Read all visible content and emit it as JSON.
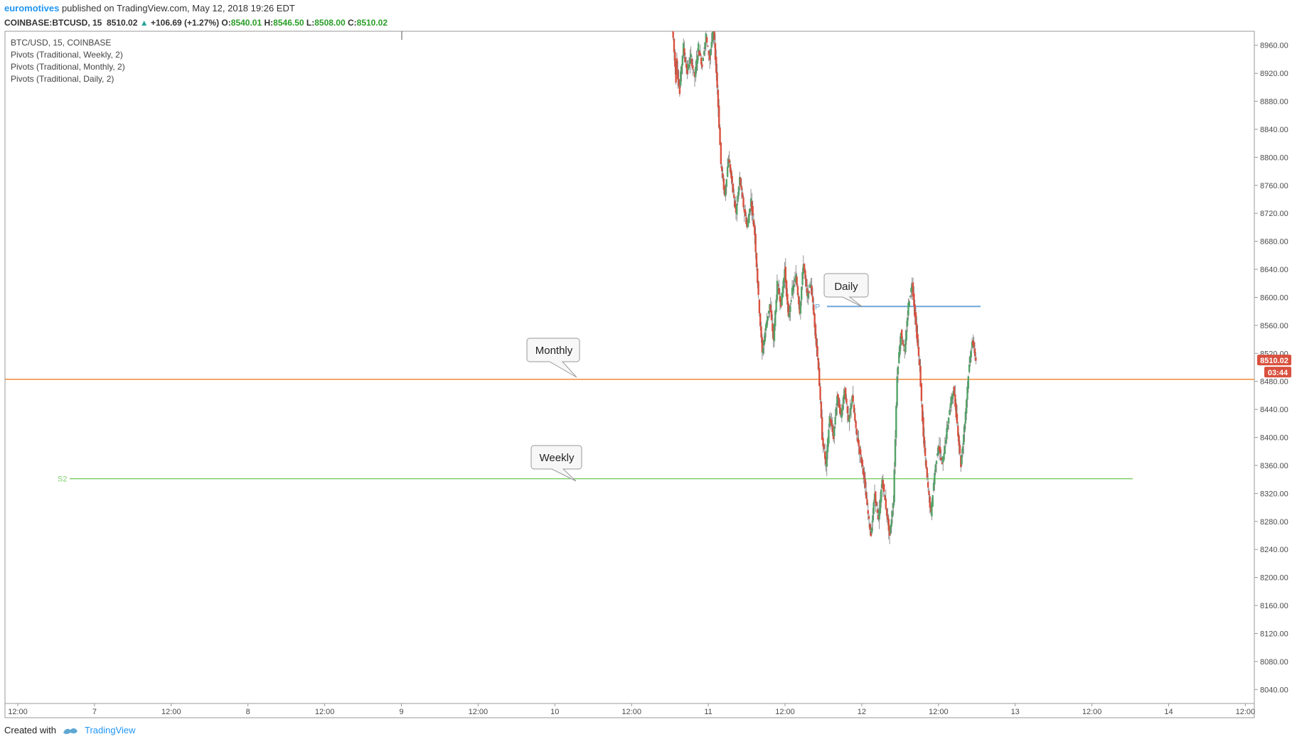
{
  "header": {
    "author": "euromotives",
    "published": "published on TradingView.com, May 12, 2018 19:26 EDT",
    "symbol": "COINBASE:BTCUSD, 15",
    "last": "8510.02",
    "change": "+106.69 (+1.27%)",
    "o_label": "O:",
    "o_val": "8540.01",
    "h_label": "H:",
    "h_val": "8546.50",
    "l_label": "L:",
    "l_val": "8508.00",
    "c_label": "C:",
    "c_val": "8510.02"
  },
  "legend": [
    "BTC/USD, 15, COINBASE",
    "Pivots (Traditional, Weekly, 2)",
    "Pivots (Traditional, Monthly, 2)",
    "Pivots (Traditional, Daily, 2)"
  ],
  "callouts": {
    "daily": "Daily",
    "monthly": "Monthly",
    "weekly": "Weekly"
  },
  "pivot_labels": {
    "daily": "P",
    "weekly": "S2"
  },
  "price_tag": {
    "price": "8510.02",
    "countdown": "03:44"
  },
  "colors": {
    "up": "#53a468",
    "down": "#d9513f",
    "monthly": "#f08a3a",
    "weekly": "#7fcf6e",
    "daily": "#6ea6dc",
    "tag": "#d9513f"
  },
  "footer": {
    "created_with": "Created with",
    "brand": "TradingView"
  },
  "chart_data": {
    "type": "candlestick",
    "ylim": [
      8020,
      8980
    ],
    "y_ticks": [
      8960,
      8920,
      8880,
      8840,
      8800,
      8760,
      8720,
      8680,
      8640,
      8600,
      8560,
      8520,
      8480,
      8440,
      8400,
      8360,
      8320,
      8280,
      8240,
      8200,
      8160,
      8120,
      8080,
      8040
    ],
    "x_ticks": [
      "12:00",
      "7",
      "12:00",
      "8",
      "12:00",
      "9",
      "12:00",
      "10",
      "12:00",
      "11",
      "12:00",
      "12",
      "12:00",
      "13",
      "12:00",
      "14",
      "12:00"
    ],
    "levels": {
      "monthly": 8483,
      "weekly": 8341,
      "daily_p": 8587
    },
    "path": [
      [
        8990,
        8910
      ],
      [
        8940,
        8890
      ],
      [
        8905,
        8960
      ],
      [
        8955,
        8920
      ],
      [
        8925,
        8945
      ],
      [
        8940,
        8915
      ],
      [
        8915,
        8960
      ],
      [
        8955,
        8930
      ],
      [
        8935,
        8975
      ],
      [
        8970,
        8940
      ],
      [
        8945,
        8985
      ],
      [
        8985,
        8900
      ],
      [
        8900,
        8790
      ],
      [
        8790,
        8745
      ],
      [
        8745,
        8800
      ],
      [
        8800,
        8760
      ],
      [
        8760,
        8720
      ],
      [
        8720,
        8770
      ],
      [
        8770,
        8730
      ],
      [
        8730,
        8700
      ],
      [
        8700,
        8740
      ],
      [
        8740,
        8690
      ],
      [
        8690,
        8600
      ],
      [
        8600,
        8520
      ],
      [
        8520,
        8560
      ],
      [
        8560,
        8590
      ],
      [
        8590,
        8540
      ],
      [
        8540,
        8620
      ],
      [
        8620,
        8590
      ],
      [
        8590,
        8640
      ],
      [
        8640,
        8570
      ],
      [
        8570,
        8610
      ],
      [
        8610,
        8630
      ],
      [
        8630,
        8580
      ],
      [
        8580,
        8650
      ],
      [
        8650,
        8600
      ],
      [
        8600,
        8620
      ],
      [
        8620,
        8560
      ],
      [
        8560,
        8500
      ],
      [
        8500,
        8400
      ],
      [
        8400,
        8360
      ],
      [
        8360,
        8430
      ],
      [
        8430,
        8400
      ],
      [
        8400,
        8460
      ],
      [
        8460,
        8430
      ],
      [
        8430,
        8470
      ],
      [
        8470,
        8420
      ],
      [
        8420,
        8460
      ],
      [
        8460,
        8410
      ],
      [
        8410,
        8380
      ],
      [
        8380,
        8350
      ],
      [
        8350,
        8300
      ],
      [
        8300,
        8260
      ],
      [
        8260,
        8320
      ],
      [
        8320,
        8280
      ],
      [
        8280,
        8340
      ],
      [
        8340,
        8300
      ],
      [
        8300,
        8260
      ],
      [
        8260,
        8310
      ],
      [
        8310,
        8490
      ],
      [
        8490,
        8550
      ],
      [
        8550,
        8520
      ],
      [
        8520,
        8590
      ],
      [
        8590,
        8620
      ],
      [
        8620,
        8560
      ],
      [
        8560,
        8500
      ],
      [
        8500,
        8400
      ],
      [
        8400,
        8340
      ],
      [
        8340,
        8290
      ],
      [
        8290,
        8350
      ],
      [
        8350,
        8390
      ],
      [
        8390,
        8360
      ],
      [
        8360,
        8400
      ],
      [
        8400,
        8440
      ],
      [
        8440,
        8470
      ],
      [
        8470,
        8420
      ],
      [
        8420,
        8360
      ],
      [
        8360,
        8420
      ],
      [
        8420,
        8490
      ],
      [
        8490,
        8540
      ],
      [
        8540,
        8510
      ]
    ]
  }
}
